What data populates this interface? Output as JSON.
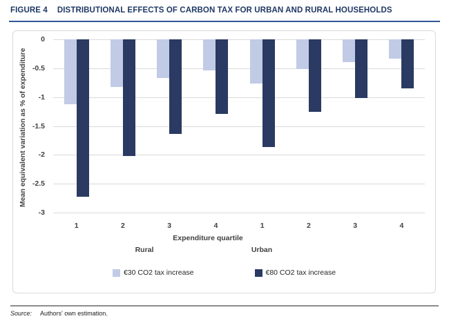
{
  "figure": {
    "label": "FIGURE 4",
    "title": "DISTRIBUTIONAL EFFECTS OF CARBON TAX FOR URBAN AND RURAL HOUSEHOLDS"
  },
  "chart_data": {
    "type": "bar",
    "categories": [
      "1",
      "2",
      "3",
      "4",
      "1",
      "2",
      "3",
      "4"
    ],
    "group_labels": [
      "Rural",
      "Urban"
    ],
    "series": [
      {
        "name": "€30 CO2 tax increase",
        "color": "#C1CBE6",
        "values": [
          -1.12,
          -0.82,
          -0.67,
          -0.54,
          -0.76,
          -0.51,
          -0.4,
          -0.33
        ]
      },
      {
        "name": "€80 CO2 tax increase",
        "color": "#2A3A62",
        "values": [
          -2.72,
          -2.02,
          -1.64,
          -1.29,
          -1.86,
          -1.26,
          -1.01,
          -0.85
        ]
      }
    ],
    "xlabel": "Expenditure quartile",
    "ylabel": "Mean equivalent variation as % of expenditure",
    "ylim": [
      -3,
      0
    ],
    "yticks": [
      0,
      -0.5,
      -1,
      -1.5,
      -2,
      -2.5,
      -3
    ],
    "grid": true,
    "legend_position": "bottom",
    "colors": {
      "gridline": "#D9D9D9",
      "axis_text": "#404040",
      "header": "#1F3864",
      "header_rule": "#2F5496"
    }
  },
  "source": {
    "label": "Source:",
    "text": "Authors' own estimation."
  }
}
